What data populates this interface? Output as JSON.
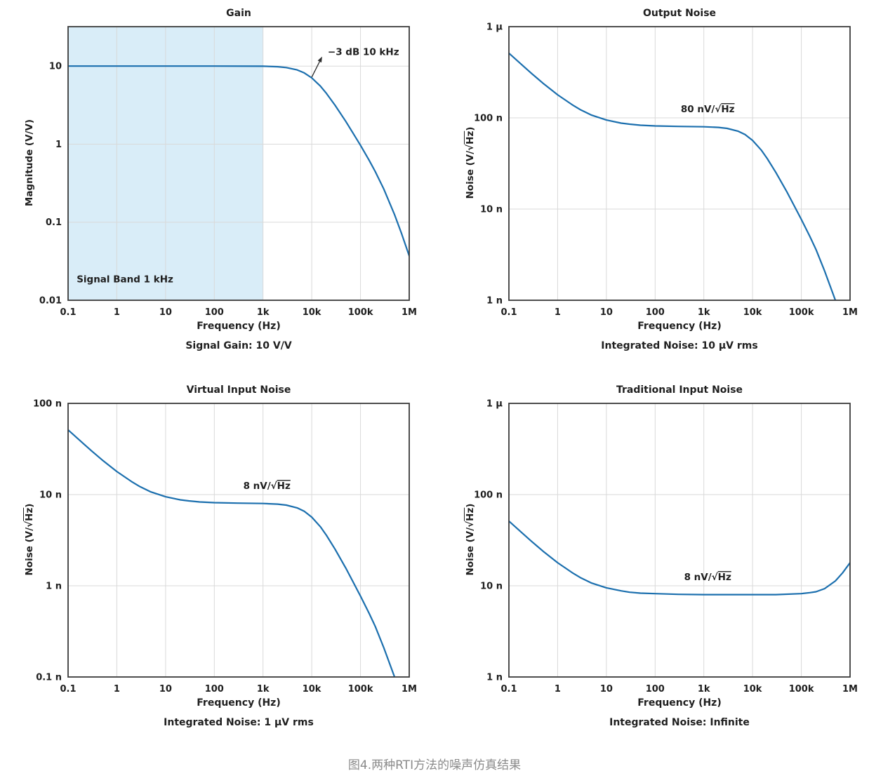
{
  "figure_caption": "图4.两种RTI方法的噪声仿真结果",
  "colors": {
    "curve": "#1b6fae",
    "band": "#d9edf8",
    "grid": "#d9d9d9",
    "frame": "#3a3a3a",
    "text": "#1f1f1f",
    "caption": "#8a8a8a"
  },
  "chart_data": [
    {
      "type": "line",
      "title": "Gain",
      "xlabel": "Frequency (Hz)",
      "ylabel": "Magnitude (V/V)",
      "subtitle": "Signal Gain: 10 V/V",
      "xlim": [
        0.1,
        1000000
      ],
      "ylim": [
        0.01,
        32
      ],
      "grid": true,
      "xticks": [
        {
          "v": 0.1,
          "label": "0.1"
        },
        {
          "v": 1,
          "label": "1"
        },
        {
          "v": 10,
          "label": "10"
        },
        {
          "v": 100,
          "label": "100"
        },
        {
          "v": 1000,
          "label": "1k"
        },
        {
          "v": 10000,
          "label": "10k"
        },
        {
          "v": 100000,
          "label": "100k"
        },
        {
          "v": 1000000,
          "label": "1M"
        }
      ],
      "yticks": [
        {
          "v": 10,
          "label": "10"
        },
        {
          "v": 1,
          "label": "1"
        },
        {
          "v": 0.1,
          "label": "0.1"
        },
        {
          "v": 0.01,
          "label": "0.01"
        }
      ],
      "band": {
        "from": 0.1,
        "to": 1000,
        "label": "Signal Band 1 kHz",
        "label_x": 0.15,
        "label_y": 0.017
      },
      "annotation": {
        "text": "−3 dB 10 kHz",
        "x": 18000,
        "y": 15,
        "anchor": "start",
        "arrow": {
          "from_x": 10000,
          "from_y": 7.2
        }
      },
      "series": [
        {
          "name": "gain",
          "x": [
            0.1,
            1,
            10,
            100,
            1000,
            2000,
            3000,
            5000,
            7000,
            10000,
            15000,
            20000,
            30000,
            50000,
            70000,
            100000,
            150000,
            200000,
            300000,
            500000,
            700000,
            1000000
          ],
          "y": [
            10,
            10,
            10,
            10,
            9.95,
            9.81,
            9.58,
            8.94,
            8.19,
            7.07,
            5.55,
            4.47,
            3.15,
            1.95,
            1.39,
            0.965,
            0.623,
            0.447,
            0.267,
            0.125,
            0.071,
            0.037
          ]
        }
      ]
    },
    {
      "type": "line",
      "title": "Output Noise",
      "xlabel": "Frequency (Hz)",
      "ylabel": "Noise (V/√Hz)",
      "subtitle": "Integrated Noise: 10 µV rms",
      "xlim": [
        0.1,
        1000000
      ],
      "ylim": [
        1e-09,
        1e-06
      ],
      "grid": true,
      "xticks": [
        {
          "v": 0.1,
          "label": "0.1"
        },
        {
          "v": 1,
          "label": "1"
        },
        {
          "v": 10,
          "label": "10"
        },
        {
          "v": 100,
          "label": "100"
        },
        {
          "v": 1000,
          "label": "1k"
        },
        {
          "v": 10000,
          "label": "10k"
        },
        {
          "v": 100000,
          "label": "100k"
        },
        {
          "v": 1000000,
          "label": "1M"
        }
      ],
      "yticks": [
        {
          "v": 1e-06,
          "label": "1 µ"
        },
        {
          "v": 1e-07,
          "label": "100 n"
        },
        {
          "v": 1e-08,
          "label": "10 n"
        },
        {
          "v": 1e-09,
          "label": "1 n"
        }
      ],
      "annotation": {
        "text": "80 nV/√Hz",
        "x": 1200,
        "y": 1.15e-07,
        "anchor": "middle"
      },
      "series": [
        {
          "name": "output-noise",
          "x": [
            0.1,
            0.2,
            0.3,
            0.5,
            1,
            2,
            3,
            5,
            10,
            20,
            30,
            50,
            100,
            300,
            1000,
            2000,
            3000,
            5000,
            7000,
            10000,
            15000,
            20000,
            30000,
            50000,
            70000,
            100000,
            150000,
            200000,
            300000,
            500000,
            700000,
            1000000
          ],
          "y": [
            5.12e-07,
            3.67e-07,
            3.03e-07,
            2.4e-07,
            1.79e-07,
            1.39e-07,
            1.22e-07,
            1.07e-07,
            9.47e-08,
            8.76e-08,
            8.52e-08,
            8.31e-08,
            8.16e-08,
            8.05e-08,
            7.98e-08,
            7.86e-08,
            7.67e-08,
            7.16e-08,
            6.56e-08,
            5.66e-08,
            4.44e-08,
            3.58e-08,
            2.52e-08,
            1.56e-08,
            1.11e-08,
            7.7e-09,
            5e-09,
            3.6e-09,
            2.1e-09,
            1e-09,
            5.7e-10,
            3e-10
          ]
        }
      ]
    },
    {
      "type": "line",
      "title": "Virtual Input Noise",
      "xlabel": "Frequency (Hz)",
      "ylabel": "Noise (V/√Hz)",
      "subtitle": "Integrated Noise: 1 µV rms",
      "xlim": [
        0.1,
        1000000
      ],
      "ylim": [
        1e-10,
        1e-07
      ],
      "grid": true,
      "xticks": [
        {
          "v": 0.1,
          "label": "0.1"
        },
        {
          "v": 1,
          "label": "1"
        },
        {
          "v": 10,
          "label": "10"
        },
        {
          "v": 100,
          "label": "100"
        },
        {
          "v": 1000,
          "label": "1k"
        },
        {
          "v": 10000,
          "label": "10k"
        },
        {
          "v": 100000,
          "label": "100k"
        },
        {
          "v": 1000000,
          "label": "1M"
        }
      ],
      "yticks": [
        {
          "v": 1e-07,
          "label": "100 n"
        },
        {
          "v": 1e-08,
          "label": "10 n"
        },
        {
          "v": 1e-09,
          "label": "1 n"
        },
        {
          "v": 1e-10,
          "label": "0.1 n"
        }
      ],
      "annotation": {
        "text": "8 nV/√Hz",
        "x": 1200,
        "y": 1.15e-08,
        "anchor": "middle"
      },
      "series": [
        {
          "name": "virtual-input-noise",
          "x": [
            0.1,
            0.2,
            0.3,
            0.5,
            1,
            2,
            3,
            5,
            10,
            20,
            30,
            50,
            100,
            300,
            1000,
            2000,
            3000,
            5000,
            7000,
            10000,
            15000,
            20000,
            30000,
            50000,
            70000,
            100000,
            150000,
            200000,
            300000,
            500000,
            700000,
            1000000
          ],
          "y": [
            5.12e-08,
            3.67e-08,
            3.03e-08,
            2.4e-08,
            1.79e-08,
            1.39e-08,
            1.22e-08,
            1.07e-08,
            9.47e-09,
            8.76e-09,
            8.52e-09,
            8.31e-09,
            8.16e-09,
            8.05e-09,
            7.98e-09,
            7.86e-09,
            7.67e-09,
            7.16e-09,
            6.56e-09,
            5.66e-09,
            4.44e-09,
            3.58e-09,
            2.52e-09,
            1.56e-09,
            1.11e-09,
            7.7e-10,
            5e-10,
            3.6e-10,
            2.1e-10,
            1e-10,
            5.7e-11,
            3e-11
          ]
        }
      ]
    },
    {
      "type": "line",
      "title": "Traditional Input Noise",
      "xlabel": "Frequency (Hz)",
      "ylabel": "Noise (V/√Hz)",
      "subtitle": "Integrated Noise: Infinite",
      "xlim": [
        0.1,
        1000000
      ],
      "ylim": [
        1e-09,
        1e-06
      ],
      "grid": true,
      "xticks": [
        {
          "v": 0.1,
          "label": "0.1"
        },
        {
          "v": 1,
          "label": "1"
        },
        {
          "v": 10,
          "label": "10"
        },
        {
          "v": 100,
          "label": "100"
        },
        {
          "v": 1000,
          "label": "1k"
        },
        {
          "v": 10000,
          "label": "10k"
        },
        {
          "v": 100000,
          "label": "100k"
        },
        {
          "v": 1000000,
          "label": "1M"
        }
      ],
      "yticks": [
        {
          "v": 1e-06,
          "label": "1 µ"
        },
        {
          "v": 1e-07,
          "label": "100 n"
        },
        {
          "v": 1e-08,
          "label": "10 n"
        },
        {
          "v": 1e-09,
          "label": "1 n"
        }
      ],
      "annotation": {
        "text": "8 nV/√Hz",
        "x": 1200,
        "y": 1.15e-08,
        "anchor": "middle"
      },
      "series": [
        {
          "name": "traditional-input-noise",
          "x": [
            0.1,
            0.2,
            0.3,
            0.5,
            1,
            2,
            3,
            5,
            10,
            20,
            30,
            50,
            100,
            300,
            1000,
            3000,
            10000,
            30000,
            100000,
            150000,
            200000,
            300000,
            500000,
            700000,
            1000000
          ],
          "y": [
            5.12e-08,
            3.67e-08,
            3.03e-08,
            2.4e-08,
            1.79e-08,
            1.39e-08,
            1.22e-08,
            1.07e-08,
            9.5e-09,
            8.8e-09,
            8.5e-09,
            8.3e-09,
            8.2e-09,
            8.05e-09,
            8e-09,
            8e-09,
            8e-09,
            8e-09,
            8.2e-09,
            8.4e-09,
            8.6e-09,
            9.3e-09,
            1.13e-08,
            1.38e-08,
            1.79e-08
          ]
        }
      ]
    }
  ]
}
